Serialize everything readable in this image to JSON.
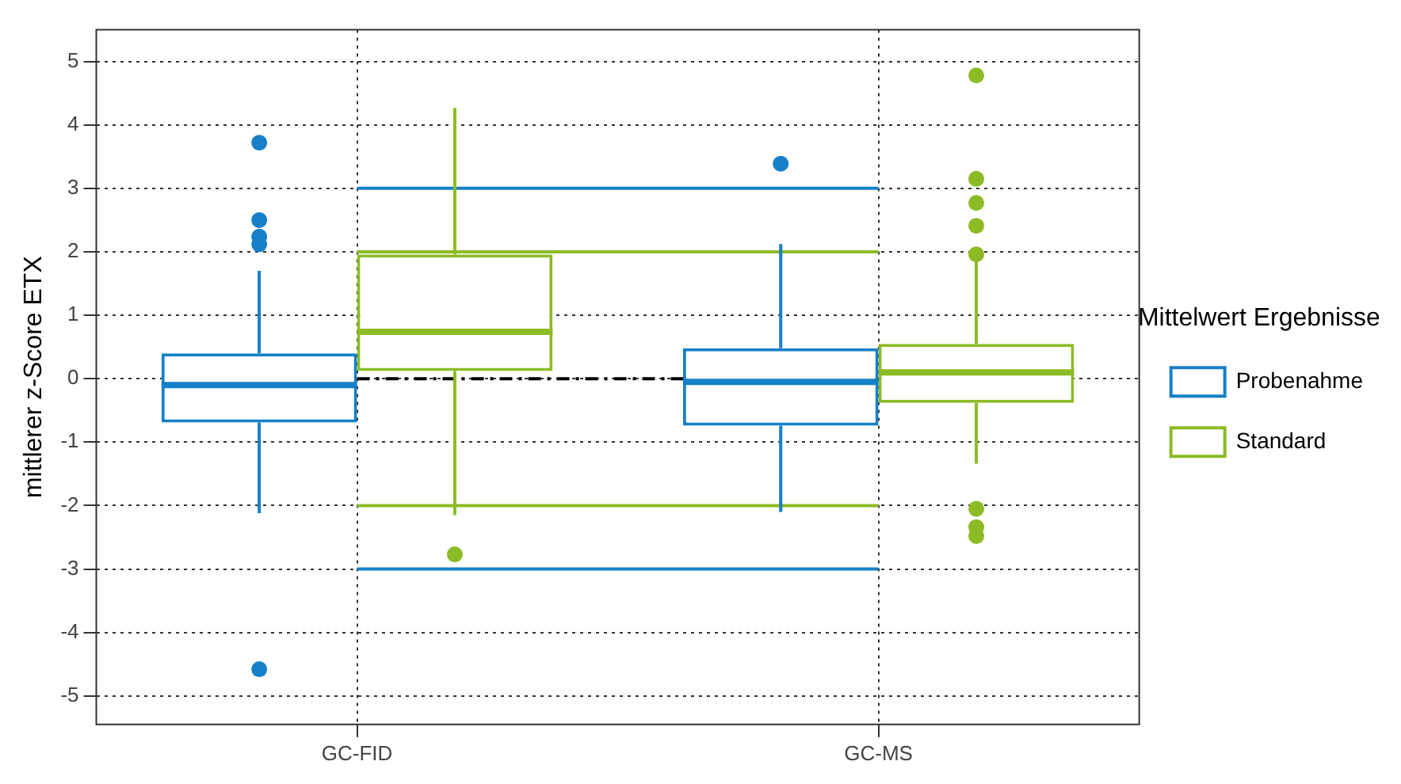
{
  "chart_data": {
    "type": "box",
    "ylabel": "mittlerer z-Score ETX",
    "legend_title": "Mittelwert Ergebnisse",
    "categories": [
      "GC-FID",
      "GC-MS"
    ],
    "series": [
      {
        "name": "Probenahme",
        "color": "#1580c8",
        "boxes": [
          {
            "low": -2.12,
            "q1": -0.69,
            "median": -0.1,
            "q3": 0.4,
            "high": 1.7,
            "outliers": [
              3.72,
              2.5,
              2.24,
              2.12,
              -4.58
            ]
          },
          {
            "low": -2.1,
            "q1": -0.74,
            "median": -0.05,
            "q3": 0.48,
            "high": 2.12,
            "outliers": [
              3.39
            ]
          }
        ]
      },
      {
        "name": "Standard",
        "color": "#8dbb25",
        "boxes": [
          {
            "low": -2.15,
            "q1": 0.12,
            "median": 0.74,
            "q3": 1.96,
            "high": 4.27,
            "outliers": [
              -2.77
            ]
          },
          {
            "low": -1.34,
            "q1": -0.38,
            "median": 0.1,
            "q3": 0.55,
            "high": 1.93,
            "outliers": [
              4.78,
              3.15,
              2.77,
              2.41,
              1.96,
              -2.05,
              -2.34,
              -2.48
            ]
          }
        ]
      }
    ],
    "ylim": [
      -5.45,
      5.5
    ],
    "yticks": [
      -5,
      -4,
      -3,
      -2,
      -1,
      0,
      1,
      2,
      3,
      4,
      5
    ],
    "ref_lines": [
      {
        "axis": "y",
        "value": 3,
        "color": "#1580c8",
        "line_style": "solid"
      },
      {
        "axis": "y",
        "value": -3,
        "color": "#1580c8",
        "line_style": "solid"
      },
      {
        "axis": "y",
        "value": 2,
        "color": "#8dbb25",
        "line_style": "solid"
      },
      {
        "axis": "y",
        "value": -2,
        "color": "#8dbb25",
        "line_style": "solid"
      },
      {
        "axis": "y",
        "value": 0,
        "color": "#000000",
        "line_style": "dashed"
      }
    ],
    "grid": true,
    "legend": "right"
  }
}
